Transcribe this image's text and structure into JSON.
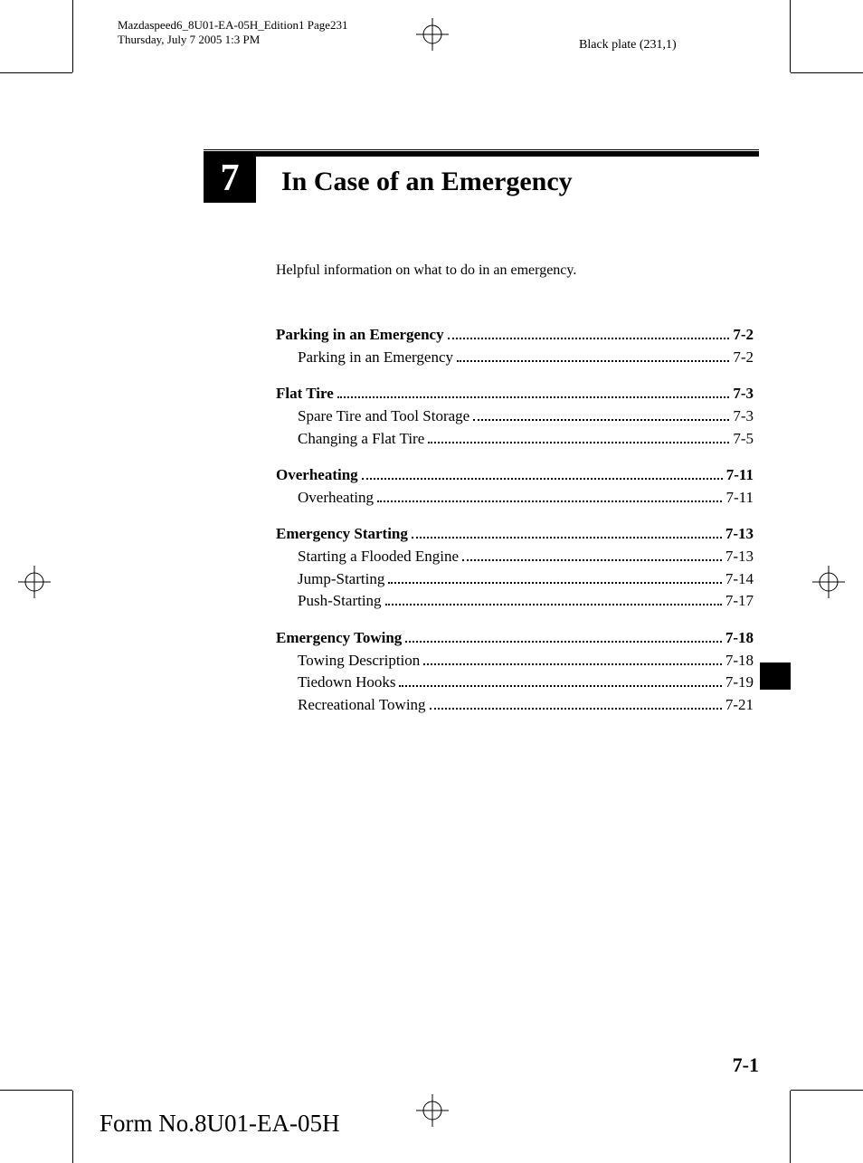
{
  "header": {
    "line1": "Mazdaspeed6_8U01-EA-05H_Edition1 Page231",
    "line2": "Thursday, July 7 2005 1:3 PM",
    "black_plate": "Black plate (231,1)"
  },
  "chapter": {
    "number": "7",
    "title": "In Case of an Emergency",
    "intro": "Helpful information on what to do in an emergency."
  },
  "toc": [
    {
      "label": "Parking in an Emergency",
      "page": "7-2",
      "children": [
        {
          "label": "Parking in an Emergency",
          "page": "7-2"
        }
      ]
    },
    {
      "label": "Flat Tire",
      "page": "7-3",
      "children": [
        {
          "label": "Spare Tire and Tool Storage",
          "page": "7-3"
        },
        {
          "label": "Changing a Flat Tire",
          "page": "7-5"
        }
      ]
    },
    {
      "label": "Overheating",
      "page": "7-11",
      "children": [
        {
          "label": "Overheating",
          "page": "7-11"
        }
      ]
    },
    {
      "label": "Emergency Starting",
      "page": "7-13",
      "children": [
        {
          "label": "Starting a Flooded Engine",
          "page": "7-13"
        },
        {
          "label": "Jump-Starting",
          "page": "7-14"
        },
        {
          "label": "Push-Starting",
          "page": "7-17"
        }
      ]
    },
    {
      "label": "Emergency Towing",
      "page": "7-18",
      "children": [
        {
          "label": "Towing Description",
          "page": "7-18"
        },
        {
          "label": "Tiedown Hooks",
          "page": "7-19"
        },
        {
          "label": "Recreational Towing",
          "page": "7-21"
        }
      ]
    }
  ],
  "page_number": "7-1",
  "form_no": "Form No.8U01-EA-05H",
  "colors": {
    "text": "#000000",
    "background": "#ffffff"
  },
  "typography": {
    "body_family": "Times New Roman",
    "chapter_title_size": 30,
    "chapter_num_size": 42,
    "toc_size": 17,
    "intro_size": 16,
    "header_size": 13,
    "page_num_size": 22,
    "form_no_size": 27
  }
}
